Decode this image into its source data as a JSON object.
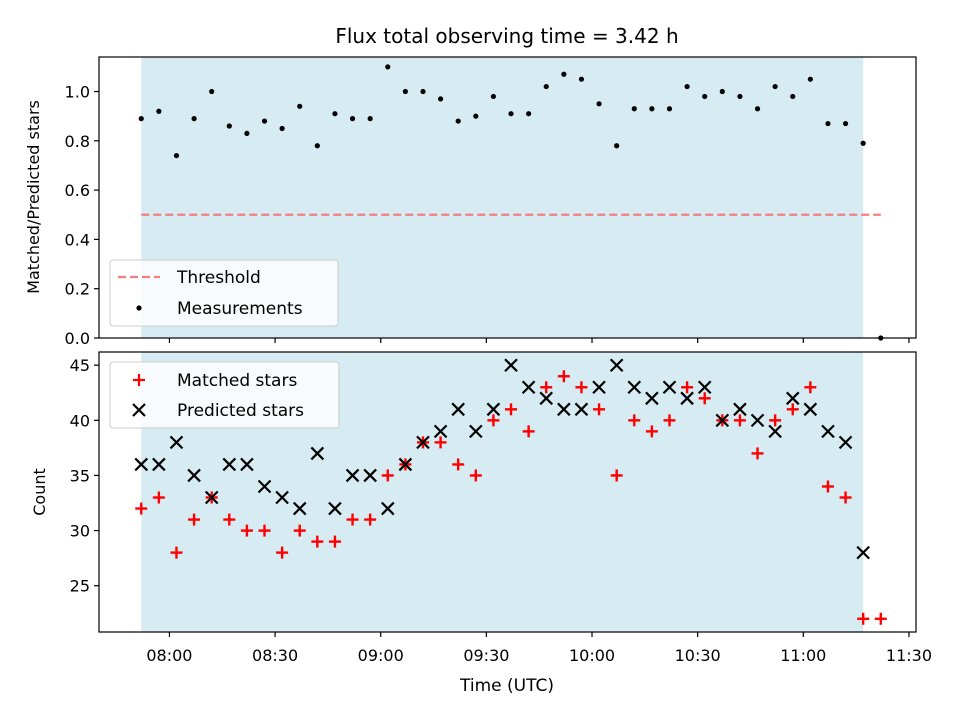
{
  "chart_data": [
    {
      "type": "scatter",
      "title": "Flux total observing time = 3.42 h",
      "xlabel": "",
      "ylabel": "Matched/Predicted stars",
      "ylim": [
        0.0,
        1.14
      ],
      "yticks": [
        "0.0",
        "0.2",
        "0.4",
        "0.6",
        "0.8",
        "1.0"
      ],
      "shaded_span": [
        "07:52",
        "11:17"
      ],
      "threshold": {
        "name": "Threshold",
        "value": 0.5,
        "x_range": [
          "07:52",
          "11:22"
        ],
        "color": "#f08080",
        "style": "dashed"
      },
      "series": [
        {
          "name": "Measurements",
          "color": "#000000",
          "marker": "dot",
          "x": [
            "07:52",
            "07:57",
            "08:02",
            "08:07",
            "08:12",
            "08:17",
            "08:22",
            "08:27",
            "08:32",
            "08:37",
            "08:42",
            "08:47",
            "08:52",
            "08:57",
            "09:02",
            "09:07",
            "09:12",
            "09:17",
            "09:22",
            "09:27",
            "09:32",
            "09:37",
            "09:42",
            "09:47",
            "09:52",
            "09:57",
            "10:02",
            "10:07",
            "10:12",
            "10:17",
            "10:22",
            "10:27",
            "10:32",
            "10:37",
            "10:42",
            "10:47",
            "10:52",
            "10:57",
            "11:02",
            "11:07",
            "11:12",
            "11:17",
            "11:22"
          ],
          "y": [
            0.89,
            0.92,
            0.74,
            0.89,
            1.0,
            0.86,
            0.83,
            0.88,
            0.85,
            0.94,
            0.78,
            0.91,
            0.89,
            0.89,
            1.1,
            1.0,
            1.0,
            0.97,
            0.88,
            0.9,
            0.98,
            0.91,
            0.91,
            1.02,
            1.07,
            1.05,
            0.95,
            0.78,
            0.93,
            0.93,
            0.93,
            1.02,
            0.98,
            1.0,
            0.98,
            0.93,
            1.02,
            0.98,
            1.05,
            0.87,
            0.87,
            0.79,
            0.0
          ]
        }
      ],
      "legend_position": "lower-left"
    },
    {
      "type": "scatter",
      "xlabel": "Time (UTC)",
      "ylabel": "Count",
      "ylim": [
        20.8,
        46.2
      ],
      "yticks": [
        "25",
        "30",
        "35",
        "40",
        "45"
      ],
      "xticks": [
        "08:00",
        "08:30",
        "09:00",
        "09:30",
        "10:00",
        "10:30",
        "11:00",
        "11:30"
      ],
      "xlim": [
        "07:40",
        "11:32"
      ],
      "shaded_span": [
        "07:52",
        "11:17"
      ],
      "series": [
        {
          "name": "Matched stars",
          "color": "#ff0000",
          "marker": "plus",
          "x": [
            "07:52",
            "07:57",
            "08:02",
            "08:07",
            "08:12",
            "08:17",
            "08:22",
            "08:27",
            "08:32",
            "08:37",
            "08:42",
            "08:47",
            "08:52",
            "08:57",
            "09:02",
            "09:07",
            "09:12",
            "09:17",
            "09:22",
            "09:27",
            "09:32",
            "09:37",
            "09:42",
            "09:47",
            "09:52",
            "09:57",
            "10:02",
            "10:07",
            "10:12",
            "10:17",
            "10:22",
            "10:27",
            "10:32",
            "10:37",
            "10:42",
            "10:47",
            "10:52",
            "10:57",
            "11:02",
            "11:07",
            "11:12",
            "11:17",
            "11:22"
          ],
          "y": [
            32,
            33,
            28,
            31,
            33,
            31,
            30,
            30,
            28,
            30,
            29,
            29,
            31,
            31,
            35,
            36,
            38,
            38,
            36,
            35,
            40,
            41,
            39,
            43,
            44,
            43,
            41,
            35,
            40,
            39,
            40,
            43,
            42,
            40,
            40,
            37,
            40,
            41,
            43,
            34,
            33,
            22,
            22
          ]
        },
        {
          "name": "Predicted stars",
          "color": "#000000",
          "marker": "x",
          "x": [
            "07:52",
            "07:57",
            "08:02",
            "08:07",
            "08:12",
            "08:17",
            "08:22",
            "08:27",
            "08:32",
            "08:37",
            "08:42",
            "08:47",
            "08:52",
            "08:57",
            "09:02",
            "09:07",
            "09:12",
            "09:17",
            "09:22",
            "09:27",
            "09:32",
            "09:37",
            "09:42",
            "09:47",
            "09:52",
            "09:57",
            "10:02",
            "10:07",
            "10:12",
            "10:17",
            "10:22",
            "10:27",
            "10:32",
            "10:37",
            "10:42",
            "10:47",
            "10:52",
            "10:57",
            "11:02",
            "11:07",
            "11:12",
            "11:17"
          ],
          "y": [
            36,
            36,
            38,
            35,
            33,
            36,
            36,
            34,
            33,
            32,
            37,
            32,
            35,
            35,
            32,
            36,
            38,
            39,
            41,
            39,
            41,
            45,
            43,
            42,
            41,
            41,
            43,
            45,
            43,
            42,
            43,
            42,
            43,
            40,
            41,
            40,
            39,
            42,
            41,
            39,
            38,
            28
          ]
        }
      ],
      "legend_position": "top-left"
    }
  ],
  "colors": {
    "shade": "#add8e6",
    "threshold": "#f08080",
    "matched": "#ff0000",
    "predicted": "#000000"
  }
}
